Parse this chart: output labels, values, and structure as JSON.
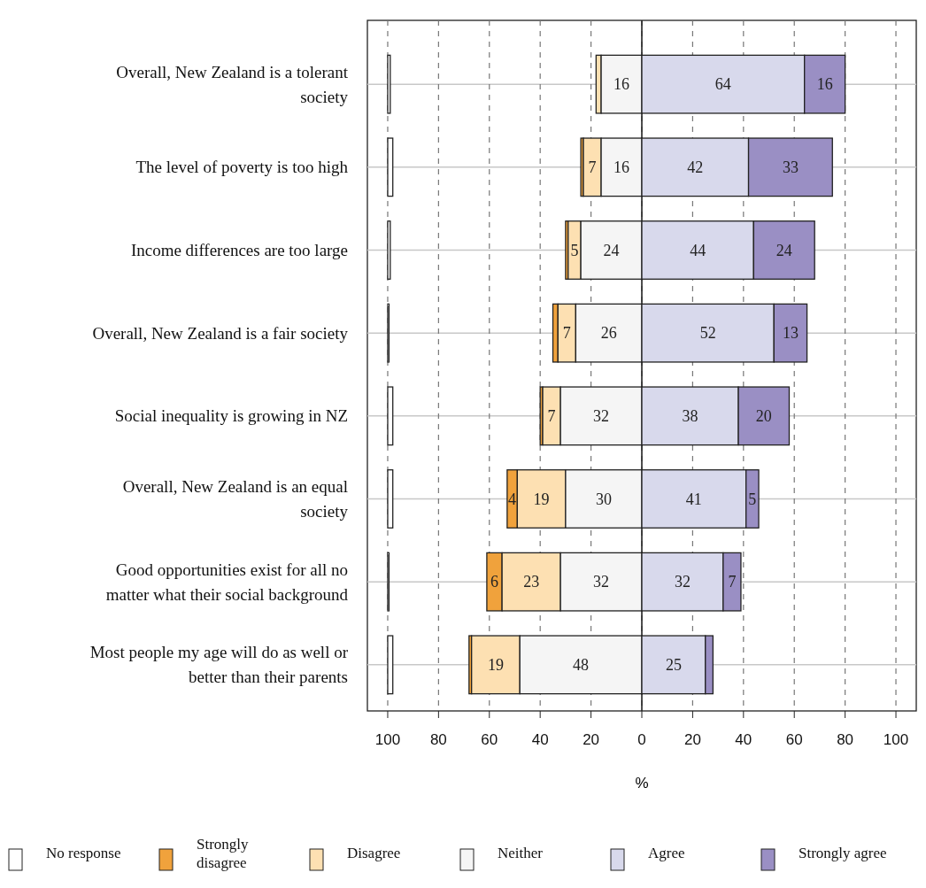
{
  "chart_data": {
    "type": "bar",
    "orientation": "horizontal",
    "xlabel": "%",
    "categories": [
      "Overall, New Zealand is a tolerant society",
      "The level of poverty is too high",
      "Income differences are too large",
      "Overall, New Zealand is a fair society",
      "Social inequality is growing in NZ",
      "Overall, New Zealand is an equal society",
      "Good opportunities exist for all no matter what their social background",
      "Most people my age will do as well or better than their parents"
    ],
    "series": [
      {
        "name": "No response",
        "color": "#ffffff",
        "values": [
          1,
          2,
          1,
          0.5,
          2,
          2,
          0.5,
          2
        ],
        "base": [
          -100,
          -100,
          -100,
          -100,
          -100,
          -100,
          -100,
          -100
        ]
      },
      {
        "name": "Strongly disagree",
        "color": "#f0a23c",
        "values": [
          null,
          1,
          1,
          2,
          1,
          4,
          6,
          1
        ],
        "base": [
          null,
          -24,
          -30,
          -35,
          -40,
          -53,
          -61,
          -68
        ],
        "value_labels": [
          null,
          null,
          null,
          null,
          null,
          "4",
          "6",
          null
        ]
      },
      {
        "name": "Disagree",
        "color": "#fde0b2",
        "values": [
          2,
          7,
          5,
          7,
          7,
          19,
          23,
          19
        ],
        "base": [
          -18,
          -23,
          -29,
          -33,
          -39,
          -49,
          -55,
          -67
        ],
        "value_labels": [
          null,
          "7",
          "5",
          "7",
          "7",
          "19",
          "23",
          "19"
        ]
      },
      {
        "name": "Neither",
        "color": "#f5f5f5",
        "values": [
          16,
          16,
          24,
          26,
          32,
          30,
          32,
          48
        ],
        "base": [
          -16,
          -16,
          -24,
          -26,
          -32,
          -30,
          -32,
          -48
        ],
        "value_labels": [
          "16",
          "16",
          "24",
          "26",
          "32",
          "30",
          "32",
          "48"
        ]
      },
      {
        "name": "Agree",
        "color": "#d8d9ec",
        "values": [
          64,
          42,
          44,
          52,
          38,
          41,
          32,
          25
        ],
        "base": [
          0,
          0,
          0,
          0,
          0,
          0,
          0,
          0
        ],
        "value_labels": [
          "64",
          "42",
          "44",
          "52",
          "38",
          "41",
          "32",
          "25"
        ]
      },
      {
        "name": "Strongly agree",
        "color": "#9a8fc4",
        "values": [
          16,
          33,
          24,
          13,
          20,
          5,
          7,
          3
        ],
        "base": [
          64,
          42,
          44,
          52,
          38,
          41,
          32,
          25
        ],
        "value_labels": [
          "16",
          "33",
          "24",
          "13",
          "20",
          "5",
          "7",
          null
        ]
      }
    ],
    "xlim": [
      -108,
      108
    ],
    "xticks": [
      {
        "value": -100,
        "label": "100"
      },
      {
        "value": -80,
        "label": "80"
      },
      {
        "value": -60,
        "label": "60"
      },
      {
        "value": -40,
        "label": "40"
      },
      {
        "value": -20,
        "label": "20"
      },
      0,
      20,
      40,
      60,
      80,
      100
    ],
    "ref_lines": [
      {
        "axis": "x",
        "value": 0
      }
    ],
    "grid": true,
    "legend": "bottom"
  }
}
